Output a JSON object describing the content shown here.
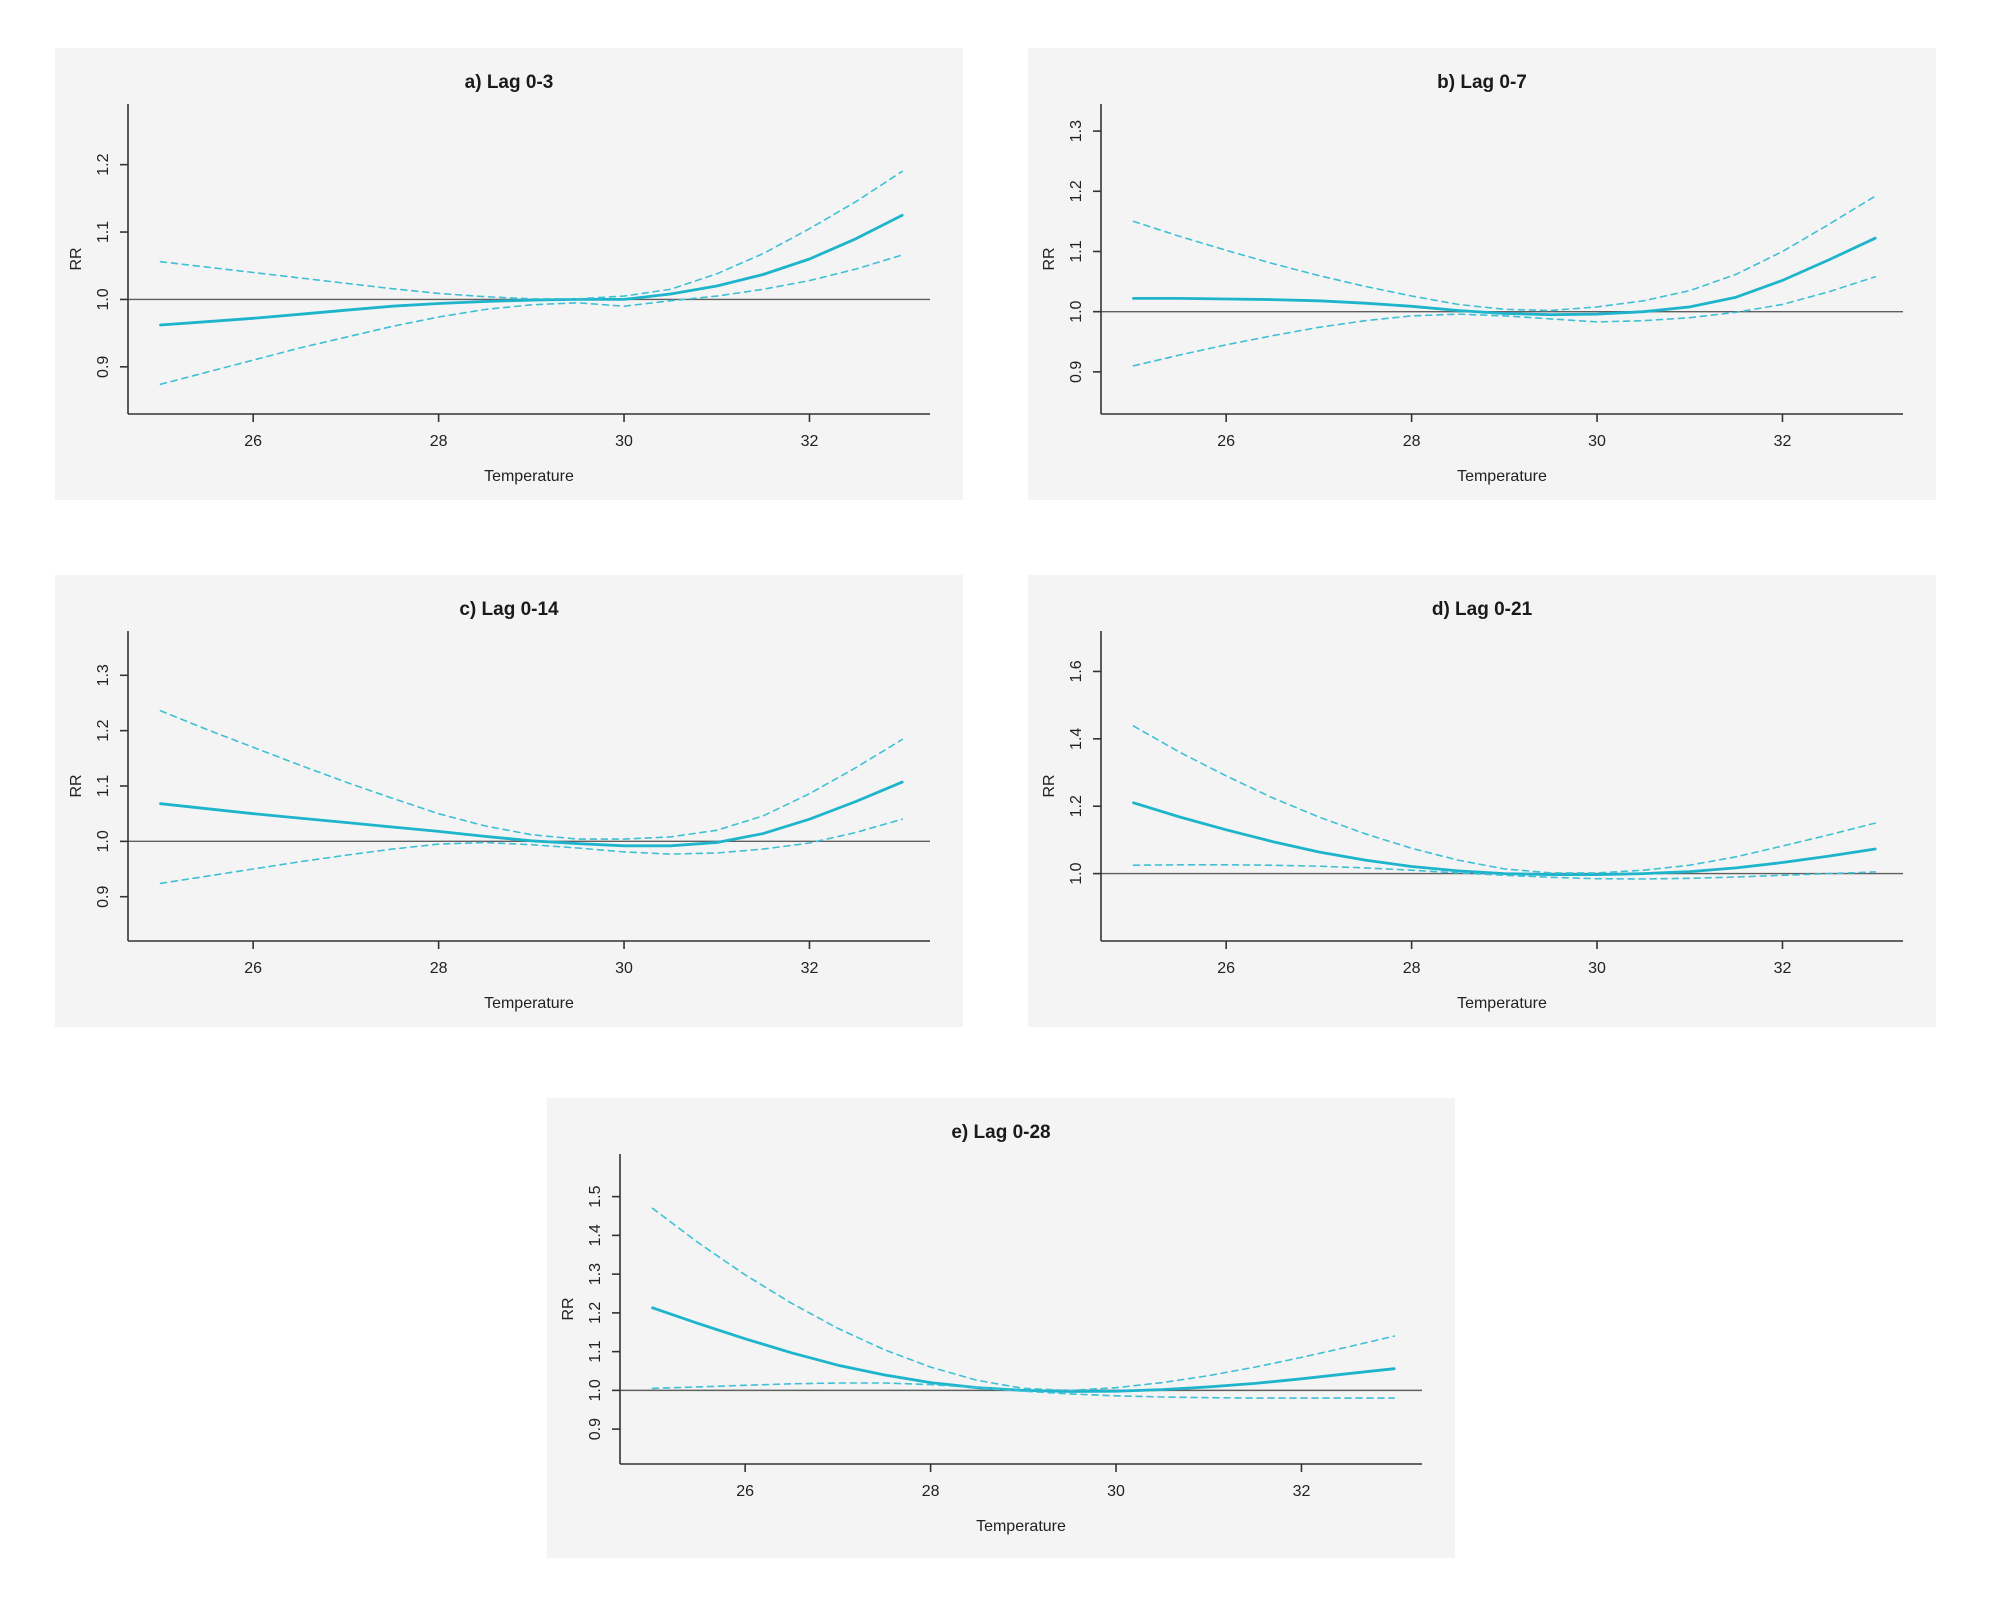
{
  "figure": {
    "description": "Exposure-response curves of relative risk (RR) versus Temperature at five cumulative lag periods",
    "background_color": "#ffffff",
    "panel_background_color": "#f3f4f3",
    "solid_line_color": "#1db4cc",
    "dashed_line_color": "#3fc0d5",
    "reference_line_color": "#5f5f5f",
    "axis_color": "#333333"
  },
  "chart_data": [
    {
      "key": "a",
      "type": "line",
      "title": "a) Lag 0-3",
      "xlabel": "Temperature",
      "ylabel": "RR",
      "x_ticks": [
        26,
        28,
        30,
        32
      ],
      "y_ticks": [
        0.9,
        1.0,
        1.1,
        1.2
      ],
      "xlim": [
        24.65,
        33.3
      ],
      "ylim": [
        0.83,
        1.29
      ],
      "reference_line_y": 1.0,
      "grid": false,
      "legend": "none",
      "x": [
        25,
        25.5,
        26,
        26.5,
        27,
        27.5,
        28,
        28.5,
        29,
        29.5,
        30,
        30.5,
        31,
        31.5,
        32,
        32.5,
        33
      ],
      "series": [
        {
          "name": "RR estimate",
          "style": "solid",
          "values": [
            0.962,
            0.967,
            0.972,
            0.978,
            0.984,
            0.99,
            0.994,
            0.997,
            0.999,
            1.0,
            1.0,
            1.008,
            1.02,
            1.037,
            1.06,
            1.09,
            1.125
          ]
        },
        {
          "name": "Upper 95% CI",
          "style": "dashed",
          "values": [
            1.056,
            1.048,
            1.04,
            1.032,
            1.024,
            1.016,
            1.009,
            1.004,
            1.001,
            1.001,
            1.005,
            1.015,
            1.038,
            1.068,
            1.105,
            1.145,
            1.19
          ]
        },
        {
          "name": "Lower 95% CI",
          "style": "dashed",
          "values": [
            0.874,
            0.892,
            0.91,
            0.928,
            0.944,
            0.96,
            0.974,
            0.985,
            0.992,
            0.995,
            0.99,
            0.998,
            1.005,
            1.015,
            1.028,
            1.045,
            1.066
          ]
        }
      ]
    },
    {
      "key": "b",
      "type": "line",
      "title": "b) Lag 0-7",
      "xlabel": "Temperature",
      "ylabel": "RR",
      "x_ticks": [
        26,
        28,
        30,
        32
      ],
      "y_ticks": [
        0.9,
        1.0,
        1.1,
        1.2,
        1.3
      ],
      "xlim": [
        24.65,
        33.3
      ],
      "ylim": [
        0.83,
        1.345
      ],
      "reference_line_y": 1.0,
      "grid": false,
      "legend": "none",
      "x": [
        25,
        25.5,
        26,
        26.5,
        27,
        27.5,
        28,
        28.5,
        29,
        29.5,
        30,
        30.5,
        31,
        31.5,
        32,
        32.5,
        33
      ],
      "series": [
        {
          "name": "RR estimate",
          "style": "solid",
          "values": [
            1.022,
            1.022,
            1.021,
            1.02,
            1.018,
            1.014,
            1.009,
            1.002,
            0.997,
            0.995,
            0.996,
            1.0,
            1.008,
            1.024,
            1.052,
            1.086,
            1.122
          ]
        },
        {
          "name": "Upper 95% CI",
          "style": "dashed",
          "values": [
            1.15,
            1.125,
            1.102,
            1.08,
            1.06,
            1.042,
            1.026,
            1.012,
            1.004,
            1.002,
            1.008,
            1.018,
            1.035,
            1.062,
            1.1,
            1.145,
            1.192
          ]
        },
        {
          "name": "Lower 95% CI",
          "style": "dashed",
          "values": [
            0.91,
            0.928,
            0.945,
            0.96,
            0.974,
            0.985,
            0.993,
            0.996,
            0.993,
            0.988,
            0.983,
            0.985,
            0.99,
            0.999,
            1.012,
            1.033,
            1.058
          ]
        }
      ]
    },
    {
      "key": "c",
      "type": "line",
      "title": "c) Lag 0-14",
      "xlabel": "Temperature",
      "ylabel": "RR",
      "x_ticks": [
        26,
        28,
        30,
        32
      ],
      "y_ticks": [
        0.9,
        1.0,
        1.1,
        1.2,
        1.3
      ],
      "xlim": [
        24.65,
        33.3
      ],
      "ylim": [
        0.82,
        1.38
      ],
      "reference_line_y": 1.0,
      "grid": false,
      "legend": "none",
      "x": [
        25,
        25.5,
        26,
        26.5,
        27,
        27.5,
        28,
        28.5,
        29,
        29.5,
        30,
        30.5,
        31,
        31.5,
        32,
        32.5,
        33
      ],
      "series": [
        {
          "name": "RR estimate",
          "style": "solid",
          "values": [
            1.068,
            1.059,
            1.05,
            1.042,
            1.034,
            1.026,
            1.018,
            1.009,
            1.001,
            0.996,
            0.992,
            0.992,
            0.998,
            1.014,
            1.04,
            1.072,
            1.107
          ]
        },
        {
          "name": "Upper 95% CI",
          "style": "dashed",
          "values": [
            1.236,
            1.202,
            1.17,
            1.138,
            1.107,
            1.078,
            1.05,
            1.028,
            1.012,
            1.004,
            1.004,
            1.008,
            1.02,
            1.046,
            1.086,
            1.133,
            1.184
          ]
        },
        {
          "name": "Lower 95% CI",
          "style": "dashed",
          "values": [
            0.924,
            0.937,
            0.95,
            0.963,
            0.975,
            0.986,
            0.995,
            0.998,
            0.994,
            0.988,
            0.981,
            0.977,
            0.979,
            0.986,
            0.997,
            1.016,
            1.04
          ]
        }
      ]
    },
    {
      "key": "d",
      "type": "line",
      "title": "d) Lag 0-21",
      "xlabel": "Temperature",
      "ylabel": "RR",
      "x_ticks": [
        26,
        28,
        30,
        32
      ],
      "y_ticks": [
        1.0,
        1.2,
        1.4,
        1.6
      ],
      "xlim": [
        24.65,
        33.3
      ],
      "ylim": [
        0.8,
        1.72
      ],
      "reference_line_y": 1.0,
      "grid": false,
      "legend": "none",
      "x": [
        25,
        25.5,
        26,
        26.5,
        27,
        27.5,
        28,
        28.5,
        29,
        29.5,
        30,
        30.5,
        31,
        31.5,
        32,
        32.5,
        33
      ],
      "series": [
        {
          "name": "RR estimate",
          "style": "solid",
          "values": [
            1.21,
            1.168,
            1.13,
            1.095,
            1.064,
            1.04,
            1.021,
            1.008,
            1.0,
            0.997,
            0.997,
            1.0,
            1.006,
            1.017,
            1.033,
            1.052,
            1.073
          ]
        },
        {
          "name": "Upper 95% CI",
          "style": "dashed",
          "values": [
            1.438,
            1.36,
            1.29,
            1.225,
            1.168,
            1.118,
            1.075,
            1.04,
            1.014,
            1.002,
            1.002,
            1.01,
            1.025,
            1.05,
            1.082,
            1.115,
            1.15
          ]
        },
        {
          "name": "Lower 95% CI",
          "style": "dashed",
          "values": [
            1.025,
            1.026,
            1.026,
            1.025,
            1.022,
            1.017,
            1.01,
            1.002,
            0.995,
            0.989,
            0.985,
            0.984,
            0.986,
            0.99,
            0.995,
            1.0,
            1.005
          ]
        }
      ]
    },
    {
      "key": "e",
      "type": "line",
      "title": "e) Lag 0-28",
      "xlabel": "Temperature",
      "ylabel": "RR",
      "x_ticks": [
        26,
        28,
        30,
        32
      ],
      "y_ticks": [
        0.9,
        1.0,
        1.1,
        1.2,
        1.3,
        1.4,
        1.5
      ],
      "xlim": [
        24.65,
        33.3
      ],
      "ylim": [
        0.81,
        1.61
      ],
      "reference_line_y": 1.0,
      "grid": false,
      "legend": "none",
      "x": [
        25,
        25.5,
        26,
        26.5,
        27,
        27.5,
        28,
        28.5,
        29,
        29.5,
        30,
        30.5,
        31,
        31.5,
        32,
        32.5,
        33
      ],
      "series": [
        {
          "name": "RR estimate",
          "style": "solid",
          "values": [
            1.213,
            1.172,
            1.133,
            1.097,
            1.065,
            1.04,
            1.02,
            1.007,
            1.0,
            0.997,
            0.998,
            1.002,
            1.009,
            1.018,
            1.03,
            1.043,
            1.056
          ]
        },
        {
          "name": "Upper 95% CI",
          "style": "dashed",
          "values": [
            1.47,
            1.38,
            1.298,
            1.225,
            1.16,
            1.105,
            1.06,
            1.026,
            1.005,
            1.0,
            1.007,
            1.02,
            1.038,
            1.06,
            1.085,
            1.112,
            1.14
          ]
        },
        {
          "name": "Lower 95% CI",
          "style": "dashed",
          "values": [
            1.005,
            1.009,
            1.013,
            1.017,
            1.019,
            1.019,
            1.015,
            1.007,
            0.998,
            0.991,
            0.986,
            0.983,
            0.981,
            0.98,
            0.98,
            0.98,
            0.98
          ]
        }
      ]
    }
  ]
}
